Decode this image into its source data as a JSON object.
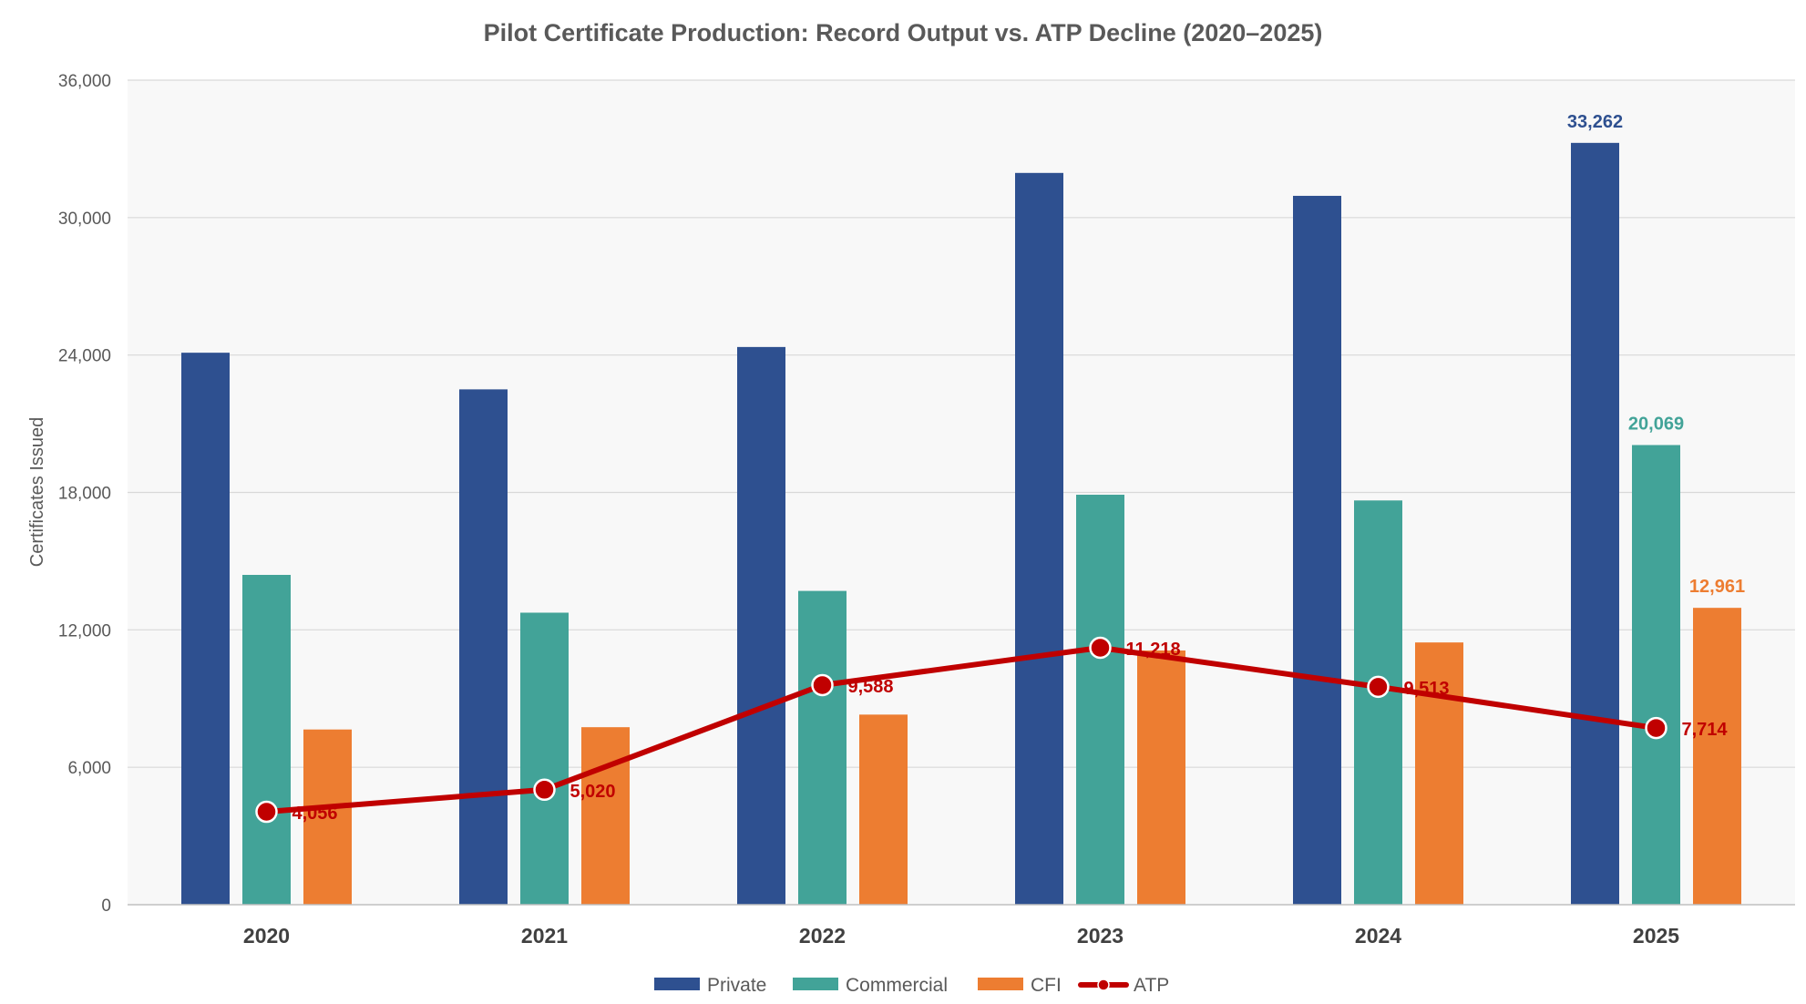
{
  "colors": {
    "private": "#2E5090",
    "commercial": "#42A398",
    "cfi": "#ED7D31",
    "atp": "#C00000",
    "plot_bg": "#F8F8F8",
    "grid": "#D9D9D9"
  },
  "chart_data": {
    "type": "bar",
    "title": "Pilot Certificate Production: Record Output vs. ATP Decline (2020–2025)",
    "xlabel": "",
    "ylabel": "Certificates Issued",
    "ylim": [
      0,
      36000
    ],
    "yticks": [
      0,
      6000,
      12000,
      18000,
      24000,
      30000,
      36000
    ],
    "ytick_labels": [
      "0",
      "6,000",
      "12,000",
      "18,000",
      "24,000",
      "30,000",
      "36,000"
    ],
    "categories": [
      "2020",
      "2021",
      "2022",
      "2023",
      "2024",
      "2025"
    ],
    "series": [
      {
        "name": "Private",
        "type": "bar",
        "color_key": "private",
        "values": [
          24100,
          22500,
          24350,
          31950,
          30950,
          33262
        ]
      },
      {
        "name": "Commercial",
        "type": "bar",
        "color_key": "commercial",
        "values": [
          14400,
          12750,
          13700,
          17900,
          17650,
          20069
        ]
      },
      {
        "name": "CFI",
        "type": "bar",
        "color_key": "cfi",
        "values": [
          7650,
          7750,
          8300,
          11100,
          11450,
          12961
        ]
      },
      {
        "name": "ATP",
        "type": "line",
        "color_key": "atp",
        "values": [
          4056,
          5020,
          9588,
          11218,
          9513,
          7714
        ]
      }
    ],
    "bar_data_labels": [
      {
        "series": 0,
        "index": 5,
        "text": "33,262"
      },
      {
        "series": 1,
        "index": 5,
        "text": "20,069"
      },
      {
        "series": 2,
        "index": 5,
        "text": "12,961"
      }
    ],
    "line_data_labels": [
      "4,056",
      "5,020",
      "9,588",
      "11,218",
      "9,513",
      "7,714"
    ],
    "grid": true,
    "legend_position": "bottom"
  }
}
